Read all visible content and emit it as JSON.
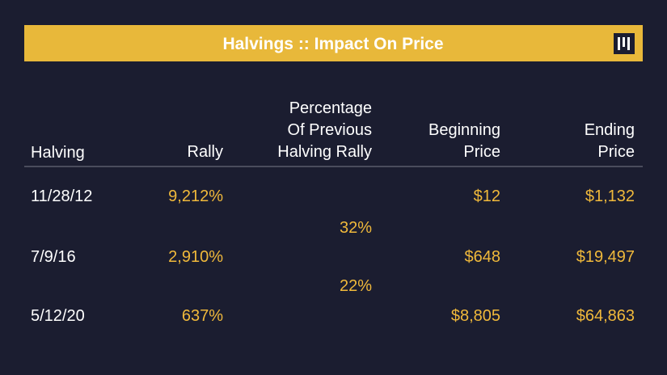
{
  "header": {
    "title": "Halvings :: Impact On Price"
  },
  "table": {
    "columns": [
      [
        "Halving"
      ],
      [
        "Rally"
      ],
      [
        "Percentage",
        "Of Previous",
        "Halving Rally"
      ],
      [
        "Beginning",
        "Price"
      ],
      [
        "Ending",
        "Price"
      ]
    ],
    "rows": [
      [
        "11/28/12",
        "9,212%",
        "$12",
        "$1,132"
      ],
      [
        "7/9/16",
        "2,910%",
        "$648",
        "$19,497"
      ],
      [
        "5/12/20",
        "637%",
        "$8,805",
        "$64,863"
      ]
    ],
    "between": [
      "32%",
      "22%"
    ]
  }
}
